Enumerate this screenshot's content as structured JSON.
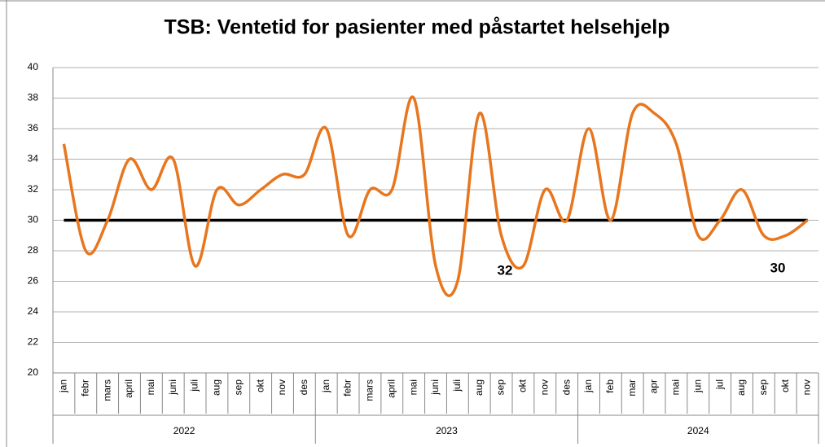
{
  "chart_data": {
    "type": "line",
    "title": "TSB: Ventetid for pasienter med påstartet helsehjelp",
    "category_groups": [
      {
        "label": "2022",
        "categories": [
          "jan",
          "febr",
          "mars",
          "april",
          "mai",
          "juni",
          "juli",
          "aug",
          "sep",
          "okt",
          "nov",
          "des"
        ]
      },
      {
        "label": "2023",
        "categories": [
          "jan",
          "febr",
          "mars",
          "april",
          "mai",
          "juni",
          "juli",
          "aug",
          "sep",
          "okt",
          "nov",
          "des"
        ]
      },
      {
        "label": "2024",
        "categories": [
          "jan",
          "feb",
          "mar",
          "apr",
          "mai",
          "jun",
          "jul",
          "aug",
          "sep",
          "okt",
          "nov"
        ]
      }
    ],
    "series": [
      {
        "color": "#e8761e",
        "values": [
          35,
          28,
          30,
          34,
          32,
          34,
          27,
          32,
          31,
          32,
          33,
          33,
          36,
          29,
          32,
          32,
          38,
          27,
          26,
          37,
          29,
          27,
          32,
          30,
          36,
          30,
          37,
          37,
          35,
          29,
          30,
          32,
          29,
          29,
          30
        ]
      }
    ],
    "reference_line": {
      "value": 30,
      "color": "#000000"
    },
    "annotations": [
      "32",
      "30"
    ],
    "ylim": [
      20,
      40
    ],
    "yticks": [
      20,
      22,
      24,
      26,
      28,
      30,
      32,
      34,
      36,
      38,
      40
    ],
    "grid": true
  }
}
